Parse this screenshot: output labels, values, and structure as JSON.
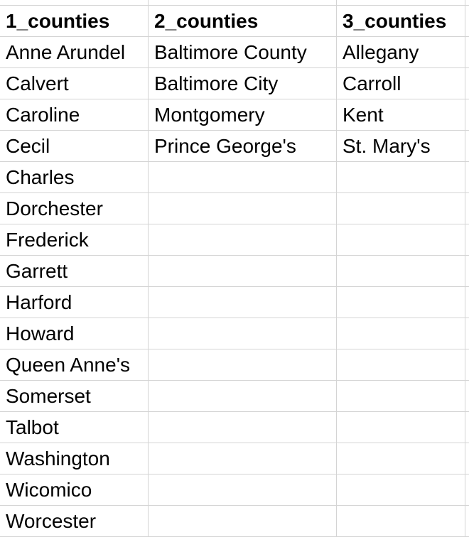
{
  "sheet": {
    "headers": [
      "1_counties",
      "2_counties",
      "3_counties"
    ],
    "rows": [
      [
        "Anne Arundel",
        "Baltimore County",
        "Allegany"
      ],
      [
        "Calvert",
        "Baltimore City",
        "Carroll"
      ],
      [
        "Caroline",
        "Montgomery",
        "Kent"
      ],
      [
        "Cecil",
        "Prince George's",
        "St. Mary's"
      ],
      [
        "Charles",
        "",
        ""
      ],
      [
        "Dorchester",
        "",
        ""
      ],
      [
        "Frederick",
        "",
        ""
      ],
      [
        "Garrett",
        "",
        ""
      ],
      [
        "Harford",
        "",
        ""
      ],
      [
        "Howard",
        "",
        ""
      ],
      [
        "Queen Anne's",
        "",
        ""
      ],
      [
        "Somerset",
        "",
        ""
      ],
      [
        "Talbot",
        "",
        ""
      ],
      [
        "Washington",
        "",
        ""
      ],
      [
        "Wicomico",
        "",
        ""
      ],
      [
        "Worcester",
        "",
        ""
      ]
    ]
  },
  "colors": {
    "gridline": "#d4d4d4",
    "text": "#000000",
    "background": "#ffffff"
  }
}
